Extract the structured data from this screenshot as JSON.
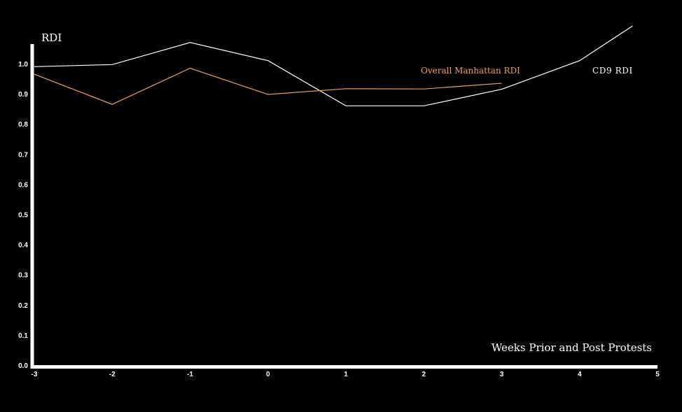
{
  "chart_data": {
    "type": "line",
    "ylabel": "RDI",
    "xlabel": "Weeks Prior and Post Protests",
    "xlim": [
      -3,
      5
    ],
    "ylim": [
      0,
      1.0
    ],
    "x_ticks": [
      "-3",
      "-2",
      "-1",
      "0",
      "1",
      "2",
      "3",
      "4",
      "5"
    ],
    "y_ticks": [
      "0.0",
      "0.1",
      "0.2",
      "0.3",
      "0.4",
      "0.5",
      "0.6",
      "0.7",
      "0.8",
      "0.9",
      "1.0"
    ],
    "grid": false,
    "series": [
      {
        "name": "CD9 RDI",
        "color": "#ffffff",
        "x": [
          -3,
          -2,
          -1,
          0,
          1,
          2,
          3,
          4,
          4.68
        ],
        "y": [
          0.99,
          0.997,
          1.07,
          1.01,
          0.86,
          0.86,
          0.915,
          1.01,
          1.125
        ]
      },
      {
        "name": "Overall Manhattan RDI",
        "color": "#f0a04b",
        "x": [
          -3,
          -2,
          -1,
          0,
          1,
          2,
          3
        ],
        "y": [
          0.965,
          0.865,
          0.985,
          0.898,
          0.917,
          0.916,
          0.935
        ]
      }
    ]
  }
}
